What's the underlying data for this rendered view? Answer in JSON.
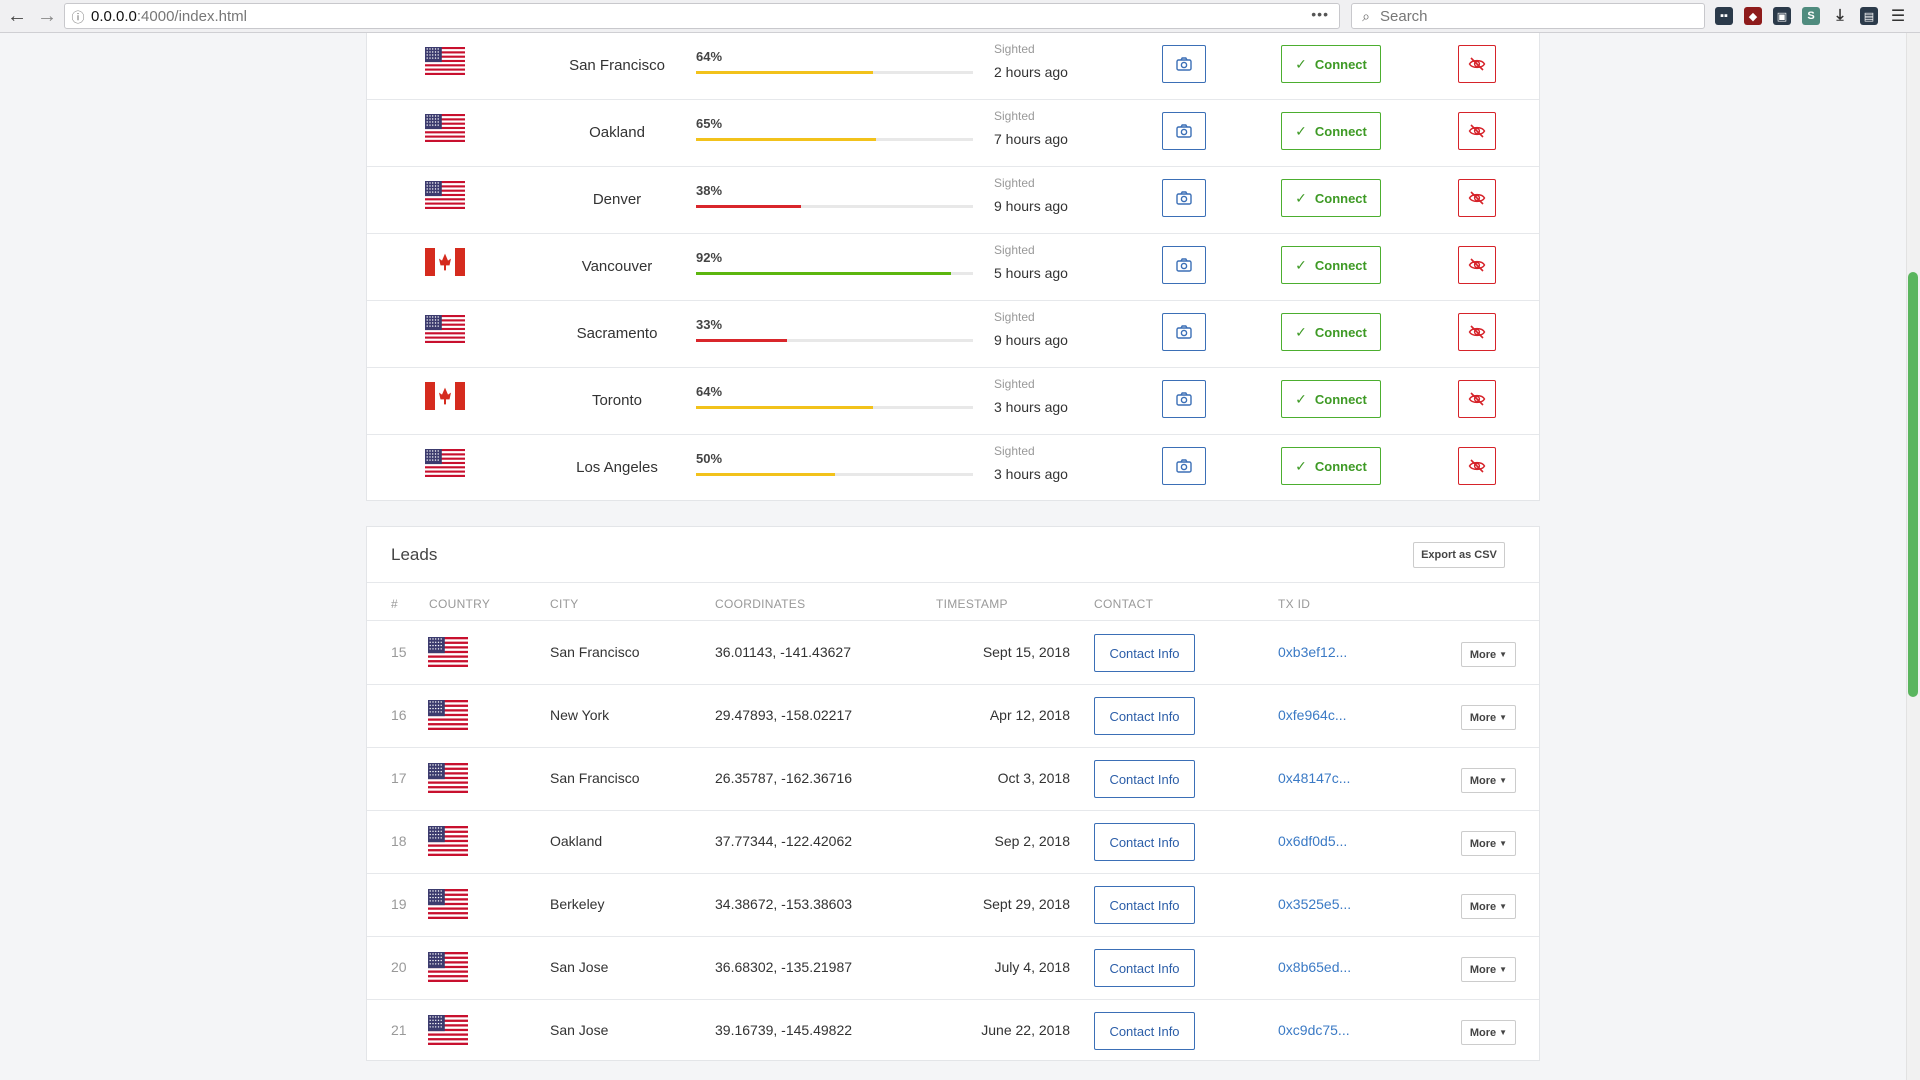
{
  "browser": {
    "url_host": "0.0.0.0",
    "url_path": ":4000/index.html",
    "search_placeholder": "Search",
    "back_icon": "←",
    "forward_icon": "→",
    "menu_dots": "•••"
  },
  "colors": {
    "bar_yellow": "#f2c21b",
    "bar_red": "#d9262b",
    "bar_green": "#5cb60f",
    "connect_green": "#4cae2f",
    "camera_blue": "#3b6fb6",
    "hide_red": "#d6232a",
    "link_blue": "#3b7ac5"
  },
  "sightings": [
    {
      "flag": "us",
      "city": "San Francisco",
      "percent_label": "64%",
      "percent": 64,
      "bar_color": "yellow",
      "sighted_label": "Sighted",
      "ago": "2 hours ago",
      "connect_label": "Connect"
    },
    {
      "flag": "us",
      "city": "Oakland",
      "percent_label": "65%",
      "percent": 65,
      "bar_color": "yellow",
      "sighted_label": "Sighted",
      "ago": "7 hours ago",
      "connect_label": "Connect"
    },
    {
      "flag": "us",
      "city": "Denver",
      "percent_label": "38%",
      "percent": 38,
      "bar_color": "red",
      "sighted_label": "Sighted",
      "ago": "9 hours ago",
      "connect_label": "Connect"
    },
    {
      "flag": "ca",
      "city": "Vancouver",
      "percent_label": "92%",
      "percent": 92,
      "bar_color": "green",
      "sighted_label": "Sighted",
      "ago": "5 hours ago",
      "connect_label": "Connect"
    },
    {
      "flag": "us",
      "city": "Sacramento",
      "percent_label": "33%",
      "percent": 33,
      "bar_color": "red",
      "sighted_label": "Sighted",
      "ago": "9 hours ago",
      "connect_label": "Connect"
    },
    {
      "flag": "ca",
      "city": "Toronto",
      "percent_label": "64%",
      "percent": 64,
      "bar_color": "yellow",
      "sighted_label": "Sighted",
      "ago": "3 hours ago",
      "connect_label": "Connect"
    },
    {
      "flag": "us",
      "city": "Los Angeles",
      "percent_label": "50%",
      "percent": 50,
      "bar_color": "yellow",
      "sighted_label": "Sighted",
      "ago": "3 hours ago",
      "connect_label": "Connect"
    }
  ],
  "leads": {
    "title": "Leads",
    "export_label": "Export as CSV",
    "columns": {
      "num": "#",
      "country": "COUNTRY",
      "city": "CITY",
      "coordinates": "COORDINATES",
      "timestamp": "TIMESTAMP",
      "contact": "CONTACT",
      "txid": "TX ID"
    },
    "rows": [
      {
        "num": "15",
        "flag": "us",
        "city": "San Francisco",
        "coords": "36.01143, -141.43627",
        "timestamp": "Sept 15, 2018",
        "contact_label": "Contact Info",
        "txid": "0xb3ef12...",
        "more_label": "More"
      },
      {
        "num": "16",
        "flag": "us",
        "city": "New York",
        "coords": "29.47893, -158.02217",
        "timestamp": "Apr 12, 2018",
        "contact_label": "Contact Info",
        "txid": "0xfe964c...",
        "more_label": "More"
      },
      {
        "num": "17",
        "flag": "us",
        "city": "San Francisco",
        "coords": "26.35787, -162.36716",
        "timestamp": "Oct 3, 2018",
        "contact_label": "Contact Info",
        "txid": "0x48147c...",
        "more_label": "More"
      },
      {
        "num": "18",
        "flag": "us",
        "city": "Oakland",
        "coords": "37.77344, -122.42062",
        "timestamp": "Sep 2, 2018",
        "contact_label": "Contact Info",
        "txid": "0x6df0d5...",
        "more_label": "More"
      },
      {
        "num": "19",
        "flag": "us",
        "city": "Berkeley",
        "coords": "34.38672, -153.38603",
        "timestamp": "Sept 29, 2018",
        "contact_label": "Contact Info",
        "txid": "0x3525e5...",
        "more_label": "More"
      },
      {
        "num": "20",
        "flag": "us",
        "city": "San Jose",
        "coords": "36.68302, -135.21987",
        "timestamp": "July 4, 2018",
        "contact_label": "Contact Info",
        "txid": "0x8b65ed...",
        "more_label": "More"
      },
      {
        "num": "21",
        "flag": "us",
        "city": "San Jose",
        "coords": "39.16739, -145.49822",
        "timestamp": "June 22, 2018",
        "contact_label": "Contact Info",
        "txid": "0xc9dc75...",
        "more_label": "More"
      }
    ]
  }
}
